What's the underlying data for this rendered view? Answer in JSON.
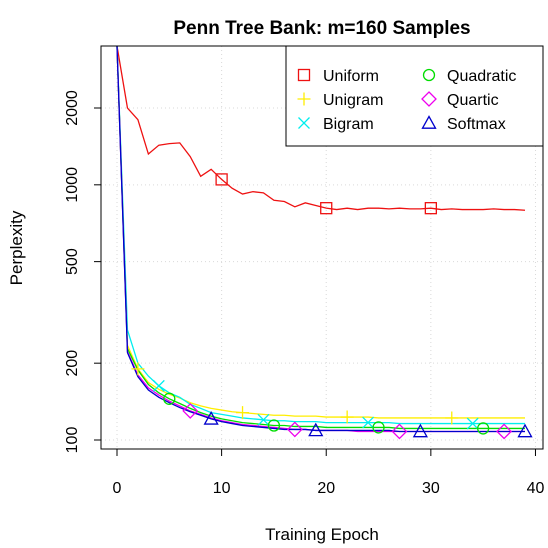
{
  "chart_data": {
    "type": "line",
    "title": "Penn Tree Bank: m=160 Samples",
    "xlabel": "Training Epoch",
    "ylabel": "Perplexity",
    "xlim": [
      0,
      39
    ],
    "ylim": [
      95,
      3000
    ],
    "y_scale": "log",
    "x_ticks": [
      0,
      10,
      20,
      30,
      40
    ],
    "y_ticks": [
      100,
      200,
      500,
      1000,
      2000
    ],
    "grid": true,
    "legend_position": "top-right",
    "x": [
      0,
      1,
      2,
      3,
      4,
      5,
      6,
      7,
      8,
      9,
      10,
      11,
      12,
      13,
      14,
      15,
      16,
      17,
      18,
      19,
      20,
      21,
      22,
      23,
      24,
      25,
      26,
      27,
      28,
      29,
      30,
      31,
      32,
      33,
      34,
      35,
      36,
      37,
      38,
      39
    ],
    "series": [
      {
        "name": "Uniform",
        "color": "#ee1111",
        "marker": "square",
        "marker_x": [
          10,
          20,
          30
        ],
        "values": [
          3500,
          2000,
          1800,
          1320,
          1430,
          1450,
          1460,
          1290,
          1080,
          1150,
          1050,
          970,
          920,
          940,
          930,
          870,
          860,
          820,
          850,
          830,
          810,
          800,
          810,
          800,
          810,
          810,
          805,
          810,
          805,
          805,
          810,
          800,
          805,
          800,
          800,
          800,
          805,
          800,
          800,
          795
        ]
      },
      {
        "name": "Unigram",
        "color": "#ffee00",
        "marker": "plus",
        "marker_x": [
          2,
          12,
          22,
          32
        ],
        "values": [
          3500,
          235,
          190,
          168,
          158,
          151,
          146,
          140,
          136,
          133,
          131,
          129,
          128,
          127,
          126,
          125,
          125,
          124,
          124,
          124,
          123,
          123,
          123,
          123,
          123,
          122,
          122,
          122,
          122,
          122,
          122,
          122,
          122,
          122,
          122,
          122,
          122,
          122,
          122,
          122
        ]
      },
      {
        "name": "Bigram",
        "color": "#00eeee",
        "marker": "cross",
        "marker_x": [
          4,
          14,
          24,
          34
        ],
        "values": [
          3500,
          270,
          200,
          178,
          163,
          153,
          147,
          138,
          133,
          128,
          126,
          124,
          122,
          121,
          120,
          119,
          119,
          118,
          118,
          118,
          117,
          117,
          117,
          117,
          117,
          117,
          117,
          116,
          116,
          116,
          116,
          116,
          116,
          116,
          116,
          116,
          116,
          116,
          116,
          116
        ]
      },
      {
        "name": "Quadratic",
        "color": "#00dd00",
        "marker": "circle",
        "marker_x": [
          5,
          15,
          25,
          35
        ],
        "values": [
          3500,
          228,
          188,
          165,
          153,
          145,
          139,
          133,
          128,
          124,
          121,
          119,
          117,
          116,
          115,
          114,
          114,
          113,
          113,
          113,
          112,
          112,
          112,
          112,
          112,
          112,
          112,
          111,
          111,
          111,
          111,
          111,
          111,
          111,
          111,
          111,
          111,
          111,
          111,
          111
        ]
      },
      {
        "name": "Quartic",
        "color": "#ee00ee",
        "marker": "diamond",
        "marker_x": [
          7,
          17,
          27,
          37
        ],
        "values": [
          3500,
          222,
          180,
          160,
          150,
          142,
          136,
          130,
          126,
          122,
          119,
          117,
          115,
          114,
          113,
          112,
          111,
          110,
          110,
          109,
          109,
          109,
          109,
          108,
          108,
          108,
          108,
          108,
          108,
          108,
          108,
          108,
          108,
          108,
          108,
          108,
          108,
          108,
          108,
          108
        ]
      },
      {
        "name": "Softmax",
        "color": "#0000cc",
        "marker": "triangle",
        "marker_x": [
          9,
          19,
          29,
          39
        ],
        "values": [
          3500,
          220,
          177,
          157,
          147,
          140,
          134,
          129,
          125,
          121,
          118,
          116,
          114,
          113,
          112,
          111,
          110,
          110,
          110,
          109,
          109,
          109,
          109,
          109,
          109,
          109,
          109,
          108,
          108,
          108,
          108,
          108,
          108,
          108,
          108,
          108,
          108,
          108,
          108,
          108
        ]
      }
    ]
  }
}
